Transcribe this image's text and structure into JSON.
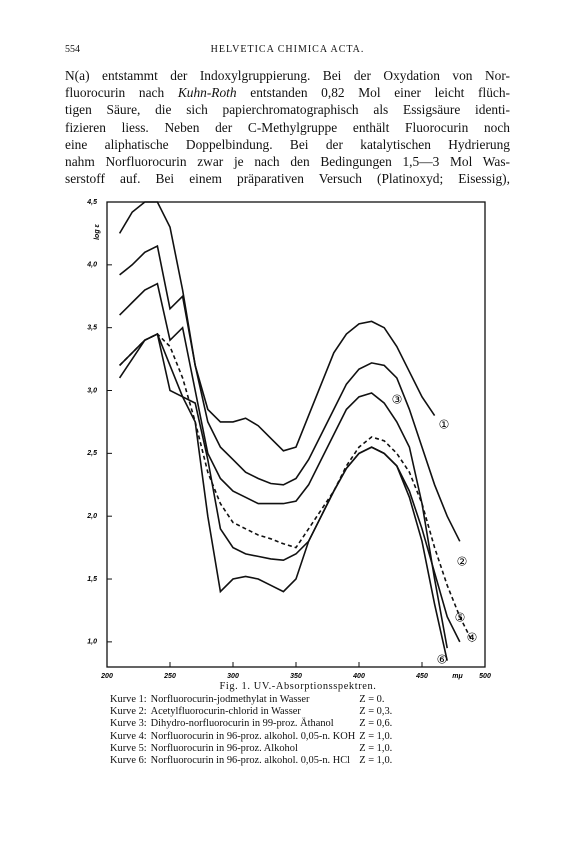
{
  "header": {
    "page": "554",
    "journal": "HELVETICA CHIMICA ACTA."
  },
  "paragraph": [
    [
      "N(a) entstammt der Indoxylgruppierung. Bei der Oxydation von Nor-"
    ],
    [
      "fluorocurin nach ",
      "Kuhn-Roth",
      " entstanden 0,82 Mol einer leicht flüch-"
    ],
    [
      "tigen Säure, die sich papierchromatographisch als Essigsäure identi-"
    ],
    [
      "fizieren liess. Neben der C-Methylgruppe enthält Fluorocurin noch"
    ],
    [
      "eine aliphatische Doppelbindung. Bei der katalytischen Hydrierung"
    ],
    [
      "nahm Norfluorocurin zwar je nach den Bedingungen 1,5—3 Mol Was-"
    ],
    [
      "serstoff auf. Bei einem präparativen Versuch (Platinoxyd; Eisessig),"
    ]
  ],
  "chart_data": {
    "type": "line",
    "ylabel": "log ε",
    "xlabel": "mμ",
    "xlim": [
      200,
      500
    ],
    "ylim": [
      0.8,
      4.5
    ],
    "xticks": [
      200,
      250,
      300,
      350,
      400,
      450,
      500
    ],
    "yticks": [
      {
        "value": 1.0,
        "label": "1,0"
      },
      {
        "value": 1.5,
        "label": "1,5"
      },
      {
        "value": 2.0,
        "label": "2,0"
      },
      {
        "value": 2.5,
        "label": "2,5"
      },
      {
        "value": 3.0,
        "label": "3,0"
      },
      {
        "value": 3.5,
        "label": "3,5"
      },
      {
        "value": 4.0,
        "label": "4,0"
      },
      {
        "value": 4.5,
        "label": "4,5"
      }
    ],
    "x": [
      210,
      220,
      230,
      240,
      250,
      260,
      270,
      280,
      290,
      300,
      310,
      320,
      330,
      340,
      350,
      360,
      370,
      380,
      390,
      400,
      410,
      420,
      430,
      440,
      450,
      460,
      470,
      480,
      490
    ],
    "series": [
      {
        "name": "①",
        "color": "#111111",
        "dash": false,
        "values": [
          4.25,
          4.42,
          4.5,
          4.5,
          4.3,
          3.8,
          3.2,
          2.85,
          2.75,
          2.75,
          2.78,
          2.72,
          2.62,
          2.52,
          2.55,
          2.8,
          3.05,
          3.3,
          3.45,
          3.53,
          3.55,
          3.5,
          3.35,
          3.15,
          2.95,
          2.8,
          null,
          null,
          null
        ]
      },
      {
        "name": "②",
        "color": "#111111",
        "dash": false,
        "values": [
          3.92,
          4.0,
          4.1,
          4.15,
          3.65,
          3.75,
          3.2,
          2.75,
          2.55,
          2.45,
          2.35,
          2.3,
          2.26,
          2.25,
          2.3,
          2.45,
          2.65,
          2.85,
          3.05,
          3.17,
          3.22,
          3.2,
          3.1,
          2.85,
          2.55,
          2.25,
          2.0,
          1.8,
          null
        ]
      },
      {
        "name": "③",
        "color": "#111111",
        "dash": false,
        "values": [
          3.6,
          3.7,
          3.8,
          3.85,
          3.4,
          3.5,
          3.0,
          2.5,
          2.3,
          2.2,
          2.15,
          2.1,
          2.1,
          2.1,
          2.12,
          2.25,
          2.45,
          2.65,
          2.85,
          2.95,
          2.98,
          2.9,
          2.75,
          2.55,
          2.1,
          1.5,
          0.95,
          null,
          null
        ]
      },
      {
        "name": "④",
        "color": "#111111",
        "dash": true,
        "values": [
          3.2,
          3.3,
          3.4,
          3.45,
          3.35,
          3.1,
          2.75,
          2.35,
          2.1,
          1.95,
          1.9,
          1.85,
          1.82,
          1.78,
          1.75,
          1.9,
          2.05,
          2.2,
          2.4,
          2.55,
          2.63,
          2.6,
          2.5,
          2.35,
          2.1,
          1.75,
          1.45,
          1.2,
          1.0
        ]
      },
      {
        "name": "⑤",
        "color": "#111111",
        "dash": false,
        "values": [
          3.1,
          3.25,
          3.4,
          3.45,
          3.2,
          2.95,
          2.9,
          2.45,
          1.9,
          1.75,
          1.7,
          1.68,
          1.66,
          1.65,
          1.7,
          1.8,
          2.0,
          2.2,
          2.38,
          2.5,
          2.55,
          2.5,
          2.4,
          2.2,
          1.9,
          1.55,
          1.2,
          1.0,
          null
        ]
      },
      {
        "name": "⑥",
        "color": "#111111",
        "dash": false,
        "values": [
          3.2,
          3.3,
          3.4,
          3.45,
          3.0,
          2.95,
          2.75,
          2.0,
          1.4,
          1.5,
          1.52,
          1.5,
          1.45,
          1.4,
          1.5,
          1.8,
          2.0,
          2.2,
          2.38,
          2.5,
          2.55,
          2.5,
          2.4,
          2.15,
          1.8,
          1.3,
          0.85,
          null,
          null
        ]
      }
    ]
  },
  "caption": {
    "title": "Fig. 1. UV.-Absorptionsspektren.",
    "rows": [
      [
        "Kurve 1:",
        "Norfluorocurin-jodmethylat in Wasser",
        "Z = 0."
      ],
      [
        "Kurve 2:",
        "Acetylfluorocurin-chlorid in Wasser",
        "Z = 0,3."
      ],
      [
        "Kurve 3:",
        "Dihydro-norfluorocurin in 99-proz. Äthanol",
        "Z = 0,6."
      ],
      [
        "Kurve 4:",
        "Norfluorocurin in 96-proz. alkohol. 0,05-n. KOH",
        "Z = 1,0."
      ],
      [
        "Kurve 5:",
        "Norfluorocurin in 96-proz. Alkohol",
        "Z = 1,0."
      ],
      [
        "Kurve 6:",
        "Norfluorocurin in 96-proz. alkohol. 0,05-n. HCl",
        "Z = 1,0."
      ]
    ]
  }
}
